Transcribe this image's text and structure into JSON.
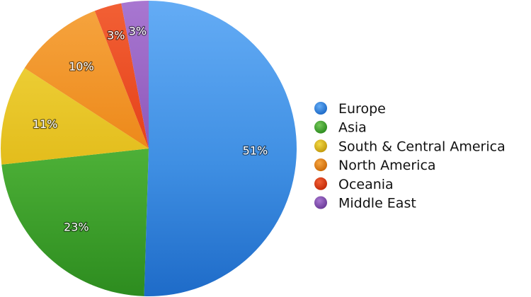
{
  "chart_data": {
    "type": "pie",
    "title": "",
    "legend_position": "right",
    "slices": [
      {
        "label": "Europe",
        "value": 51,
        "display": "51%",
        "color": "#3f8fe3",
        "color_light": "#64acf5",
        "color_dark": "#1e6bc8"
      },
      {
        "label": "Asia",
        "value": 23,
        "display": "23%",
        "color": "#4aad35",
        "color_light": "#74c85a",
        "color_dark": "#2d8c1f"
      },
      {
        "label": "South & Central America",
        "value": 11,
        "display": "11%",
        "color": "#e3bd1c",
        "color_light": "#f2d845",
        "color_dark": "#c39b0c"
      },
      {
        "label": "North America",
        "value": 10,
        "display": "10%",
        "color": "#ec8616",
        "color_light": "#f6a540",
        "color_dark": "#cc6a08"
      },
      {
        "label": "Oceania",
        "value": 3,
        "display": "3%",
        "color": "#e43f17",
        "color_light": "#f26035",
        "color_dark": "#c32a08"
      },
      {
        "label": "Middle East",
        "value": 3,
        "display": "3%",
        "color": "#8b55b8",
        "color_light": "#a877d1",
        "color_dark": "#6c3c99"
      }
    ]
  }
}
